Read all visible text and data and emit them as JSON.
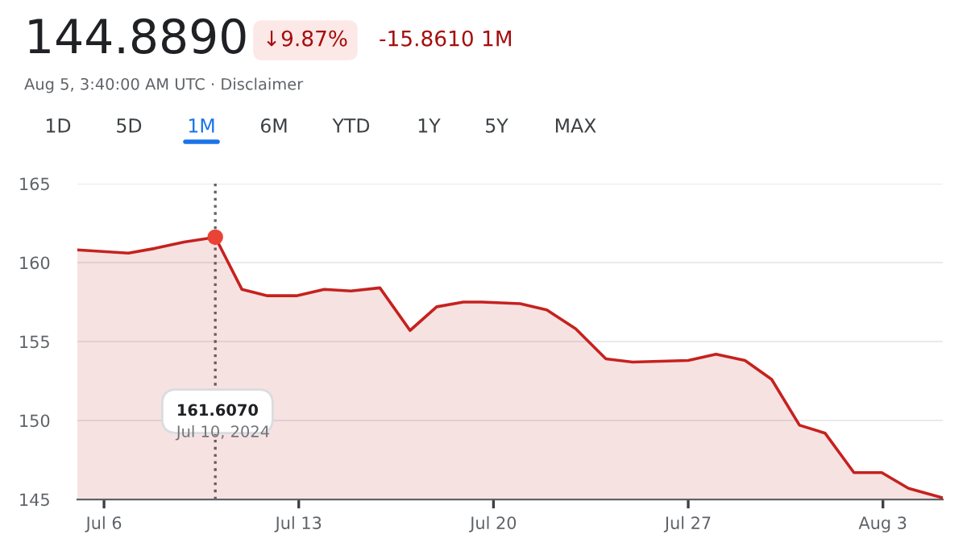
{
  "chart_data": {
    "type": "area",
    "title": "144.8890",
    "subtitle": "Aug 5, 3:40:00 AM UTC · Disclaimer",
    "annotations": [
      "↓9.87%",
      "-15.8610 1M",
      "1D",
      "5D",
      "1M",
      "6M",
      "YTD",
      "1Y",
      "5Y",
      "MAX",
      "161.6070",
      "Jul 10, 2024"
    ],
    "x": [
      "2024-07-05T01:00",
      "2024-07-06T21:00",
      "2024-07-07T20:00",
      "2024-07-08T21:00",
      "2024-07-10T00:00",
      "2024-07-10T23:00",
      "2024-07-11T21:00",
      "2024-07-12T22:00",
      "2024-07-13T22:00",
      "2024-07-14T21:00",
      "2024-07-15T22:00",
      "2024-07-17T00:00",
      "2024-07-17T23:00",
      "2024-07-18T22:00",
      "2024-07-19T14:00",
      "2024-07-20T23:00",
      "2024-07-21T22:00",
      "2024-07-22T23:00",
      "2024-07-24T01:00",
      "2024-07-25T00:00",
      "2024-07-27T00:00",
      "2024-07-28T00:00",
      "2024-07-29T01:00",
      "2024-07-30T00:00",
      "2024-07-31T00:00",
      "2024-07-31T22:00",
      "2024-08-01T23:00",
      "2024-08-02T23:00",
      "2024-08-03T22:00",
      "2024-08-05T03:40"
    ],
    "series": [
      {
        "color": "#c5221f",
        "values": [
          160.8,
          160.6,
          160.9,
          161.3,
          161.607,
          158.3,
          157.9,
          157.9,
          158.3,
          158.2,
          158.4,
          155.7,
          157.2,
          157.5,
          157.5,
          157.4,
          157.0,
          155.8,
          153.9,
          153.7,
          153.8,
          154.2,
          153.8,
          152.6,
          149.7,
          149.2,
          146.7,
          146.7,
          145.7,
          145.1
        ]
      }
    ],
    "xlim": [
      "2024-07-05T01:00",
      "2024-08-05T03:40"
    ],
    "xticks": [
      {
        "value": "2024-07-06",
        "label": "Jul 6"
      },
      {
        "value": "2024-07-13",
        "label": "Jul 13"
      },
      {
        "value": "2024-07-20",
        "label": "Jul 20"
      },
      {
        "value": "2024-07-27",
        "label": "Jul 27"
      },
      {
        "value": "2024-08-03",
        "label": "Aug 3"
      }
    ],
    "ylim": [
      145,
      165
    ],
    "yticks": [
      145,
      150,
      155,
      160,
      165
    ],
    "grid": "y",
    "ref_lines": [
      {
        "axis": "x",
        "value": "2024-07-10T00:00",
        "label": null,
        "color": "#5f6368",
        "line_style": "dotted"
      }
    ]
  }
}
